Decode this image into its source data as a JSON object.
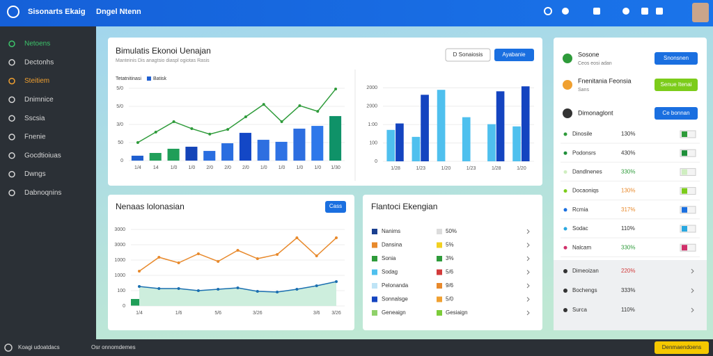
{
  "header": {
    "brand": "Sisonarts Ekaig",
    "section": "Dngel Ntenn"
  },
  "sidebar": [
    "Netoens",
    "Dectonhs",
    "Steitiem",
    "Dnimnice",
    "Sscsia",
    "Fnenie",
    "Gocdtioiuas",
    "Dwngs",
    "Dabnoqnins"
  ],
  "card1": {
    "title": "Bimulatis Ekonoi Uenajan",
    "subtitle": "Manteinis Dis anagtsio diaspl ogiotas Rasis",
    "buttons": [
      "D Sonaiosis",
      "Ayabanie"
    ]
  },
  "card2": {
    "title": "Nenaas lolonasian",
    "button": "Cass"
  },
  "chart_data": [
    {
      "type": "bar",
      "categories": [
        "1/4",
        "14",
        "1/0",
        "1/0",
        "2/0",
        "2/0",
        "2/0",
        "1/0",
        "1/0",
        "1/0",
        "1/0",
        "1/30"
      ],
      "series": [
        {
          "name": "Tetatnitinasi",
          "type": "line",
          "color": "#2e9b3a",
          "values": [
            125,
            197,
            269,
            221,
            183,
            216,
            303,
            389,
            269,
            380,
            341,
            495
          ]
        },
        {
          "name": "Batisk",
          "type": "bar",
          "color": "#1f5fd0",
          "colors": [
            "#1f5fd0",
            "#21a05a",
            "#1f9e58",
            "#1444b8",
            "#2a6ee0",
            "#2a6ee0",
            "#1347c6",
            "#2e6fe0",
            "#2f72e4",
            "#2d6ee0",
            "#2e78ea",
            "#0f9268"
          ],
          "values": [
            34,
            53,
            82,
            96,
            67,
            120,
            192,
            144,
            130,
            221,
            240,
            308
          ]
        }
      ],
      "ylim": [
        0,
        500
      ],
      "yticks": [
        0,
        {
          "value": 125,
          "label": "50"
        },
        {
          "value": 250,
          "label": "3/0"
        },
        {
          "value": 375,
          "label": "5/0"
        },
        {
          "value": 500,
          "label": "5/0"
        }
      ],
      "grid": true,
      "legend": "top-left"
    },
    {
      "type": "bar",
      "categories": [
        "1/28",
        "1/23",
        "1/20",
        "1/23",
        "1/28",
        "1/20"
      ],
      "series": [
        {
          "type": "bar",
          "color": "#4fc0ee",
          "values": [
            171,
            133,
            389,
            240,
            202,
            190
          ]
        },
        {
          "type": "bar",
          "color": "#1444c0",
          "values": [
            206,
            362,
            null,
            null,
            381,
            408
          ]
        }
      ],
      "ylim": [
        0,
        420
      ],
      "yticks": [
        0,
        100,
        {
          "value": 200,
          "label": "1:00"
        },
        {
          "value": 300,
          "label": "2000"
        },
        {
          "value": 400,
          "label": "2000"
        }
      ],
      "grid": true
    },
    {
      "type": "line",
      "categories": [
        "1/4",
        null,
        "1/6",
        null,
        "5/6",
        null,
        "3/26",
        null,
        null,
        "3/6",
        "3/26"
      ],
      "series": [
        {
          "type": "line",
          "color": "#e8892b",
          "values": [
            1136,
            1591,
            1409,
            1705,
            1455,
            1818,
            1545,
            1682,
            2227,
            1636,
            2227
          ]
        },
        {
          "type": "line",
          "color": "#1a6fb0",
          "area": true,
          "area_color": "#cdeedd",
          "values": [
            636,
            568,
            568,
            500,
            545,
            591,
            477,
            455,
            545,
            659,
            795
          ]
        }
      ],
      "ylim": [
        0,
        2500
      ],
      "yticks": [
        0,
        {
          "value": 500,
          "label": "100"
        },
        {
          "value": 1000,
          "label": "1000"
        },
        {
          "value": 1500,
          "label": "1000"
        },
        {
          "value": 2000,
          "label": "3000"
        },
        {
          "value": 2500,
          "label": "3000"
        }
      ],
      "grid": true
    }
  ],
  "legend_card": {
    "title": "Flantoci Ekengian",
    "rows": [
      {
        "name": "Nanims",
        "color": "#1a3f8f",
        "value": "50%",
        "value_color": "#dcdcdc"
      },
      {
        "name": "Dansina",
        "color": "#e8892b",
        "value": "5%",
        "value_color": "#f2d020"
      },
      {
        "name": "Sonia",
        "color": "#2e9b3a",
        "value": "3%",
        "value_color": "#2e9b3a"
      },
      {
        "name": "Sodag",
        "color": "#4fc0ee",
        "value": "5/6",
        "value_color": "#d23a3a"
      },
      {
        "name": "Pelonanda",
        "color": "#bfe4f6",
        "value": "9/6",
        "value_color": "#e8892b"
      },
      {
        "name": "Sonnalsge",
        "color": "#1444c0",
        "value": "5/0",
        "value_color": "#f0a030"
      },
      {
        "name": "Geneaign",
        "color": "#8fd16a",
        "value": "Gesiaign",
        "value_color": "#7ccc3a"
      }
    ]
  },
  "panel": {
    "items": [
      {
        "title": "Sosone",
        "subtitle": "Ceos eosi adan",
        "button": "Snonsnen",
        "button_color": "#1a6fe0"
      },
      {
        "title": "Fnenitania Feonsia",
        "subtitle": "Sans",
        "button": "Senue Itenai",
        "button_color": "#7ccc1a"
      },
      {
        "title": "Dimonaglont",
        "button": "Ce bonnan",
        "button_color": "#1a6fe0"
      }
    ],
    "rows": [
      {
        "name": "Dinosile",
        "value": "130%",
        "color": "#333333",
        "swatch": "#2e9b3a"
      },
      {
        "name": "Podonsrs",
        "value": "430%",
        "color": "#333333",
        "swatch": "#1f8f3a"
      },
      {
        "name": "Dandlnenes",
        "value": "330%",
        "color": "#2e9b3a",
        "swatch": "#cfeec0"
      },
      {
        "name": "Docaoniqs",
        "value": "130%",
        "color": "#e8892b",
        "swatch": "#7ccc1a"
      },
      {
        "name": "Rcmia",
        "value": "317%",
        "color": "#e8892b",
        "swatch": "#1a6fe0"
      },
      {
        "name": "Sodac",
        "value": "110%",
        "color": "#333333",
        "swatch": "#2aa8e0"
      },
      {
        "name": "Nalcam",
        "value": "330%",
        "color": "#2e9b3a",
        "swatch": "#d0306a"
      }
    ],
    "more": [
      {
        "name": "Dimeoizan",
        "value": "220%",
        "color": "#d23a3a"
      },
      {
        "name": "Bochengs",
        "value": "333%",
        "color": "#333333"
      },
      {
        "name": "Surca",
        "value": "110%",
        "color": "#333333"
      }
    ]
  },
  "footer": {
    "left": "Koagi udoatdacs",
    "middle": "Osr onnomdemes",
    "button": "Denmaendoens"
  }
}
